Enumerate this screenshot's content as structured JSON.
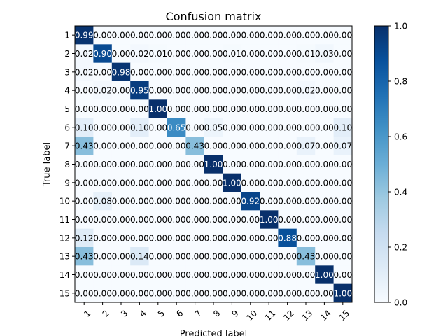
{
  "chart_data": {
    "type": "heatmap",
    "title": "Confusion matrix",
    "xlabel": "Predicted label",
    "ylabel": "True label",
    "x_tick_labels": [
      "1",
      "2",
      "3",
      "4",
      "5",
      "6",
      "7",
      "8",
      "9",
      "10",
      "11",
      "12",
      "13",
      "14",
      "15"
    ],
    "y_tick_labels": [
      "1",
      "2",
      "3",
      "4",
      "5",
      "6",
      "7",
      "8",
      "9",
      "10",
      "11",
      "12",
      "13",
      "14",
      "15"
    ],
    "x_tick_rotation_deg": 45,
    "colormap": "Blues",
    "value_range": [
      0,
      1
    ],
    "colorbar": {
      "ticks": [
        0.0,
        0.2,
        0.4,
        0.6,
        0.8,
        1.0
      ],
      "tick_labels": [
        "0.0",
        "0.2",
        "0.4",
        "0.6",
        "0.8",
        "1.0"
      ],
      "placement": "right"
    },
    "grid": false,
    "matrix": [
      [
        0.99,
        0.0,
        0.0,
        0.0,
        0.0,
        0.0,
        0.0,
        0.0,
        0.0,
        0.0,
        0.0,
        0.0,
        0.0,
        0.0,
        0.0
      ],
      [
        0.02,
        0.9,
        0.0,
        0.02,
        0.01,
        0.0,
        0.0,
        0.0,
        0.01,
        0.0,
        0.0,
        0.0,
        0.01,
        0.03,
        0.0
      ],
      [
        0.02,
        0.0,
        0.98,
        0.0,
        0.0,
        0.0,
        0.0,
        0.0,
        0.0,
        0.0,
        0.0,
        0.0,
        0.0,
        0.0,
        0.0
      ],
      [
        0.0,
        0.02,
        0.0,
        0.95,
        0.0,
        0.0,
        0.0,
        0.0,
        0.0,
        0.0,
        0.0,
        0.0,
        0.02,
        0.0,
        0.0
      ],
      [
        0.0,
        0.0,
        0.0,
        0.0,
        1.0,
        0.0,
        0.0,
        0.0,
        0.0,
        0.0,
        0.0,
        0.0,
        0.0,
        0.0,
        0.0
      ],
      [
        0.1,
        0.0,
        0.0,
        0.1,
        0.0,
        0.65,
        0.0,
        0.05,
        0.0,
        0.0,
        0.0,
        0.0,
        0.0,
        0.0,
        0.1
      ],
      [
        0.43,
        0.0,
        0.0,
        0.0,
        0.0,
        0.0,
        0.43,
        0.0,
        0.0,
        0.0,
        0.0,
        0.0,
        0.07,
        0.0,
        0.07
      ],
      [
        0.0,
        0.0,
        0.0,
        0.0,
        0.0,
        0.0,
        0.0,
        1.0,
        0.0,
        0.0,
        0.0,
        0.0,
        0.0,
        0.0,
        0.0
      ],
      [
        0.0,
        0.0,
        0.0,
        0.0,
        0.0,
        0.0,
        0.0,
        0.0,
        1.0,
        0.0,
        0.0,
        0.0,
        0.0,
        0.0,
        0.0
      ],
      [
        0.0,
        0.08,
        0.0,
        0.0,
        0.0,
        0.0,
        0.0,
        0.0,
        0.0,
        0.92,
        0.0,
        0.0,
        0.0,
        0.0,
        0.0
      ],
      [
        0.0,
        0.0,
        0.0,
        0.0,
        0.0,
        0.0,
        0.0,
        0.0,
        0.0,
        0.0,
        1.0,
        0.0,
        0.0,
        0.0,
        0.0
      ],
      [
        0.12,
        0.0,
        0.0,
        0.0,
        0.0,
        0.0,
        0.0,
        0.0,
        0.0,
        0.0,
        0.0,
        0.88,
        0.0,
        0.0,
        0.0
      ],
      [
        0.43,
        0.0,
        0.0,
        0.14,
        0.0,
        0.0,
        0.0,
        0.0,
        0.0,
        0.0,
        0.0,
        0.0,
        0.43,
        0.0,
        0.0
      ],
      [
        0.0,
        0.0,
        0.0,
        0.0,
        0.0,
        0.0,
        0.0,
        0.0,
        0.0,
        0.0,
        0.0,
        0.0,
        0.0,
        1.0,
        0.0
      ],
      [
        0.0,
        0.0,
        0.0,
        0.0,
        0.0,
        0.0,
        0.0,
        0.0,
        0.0,
        0.0,
        0.0,
        0.0,
        0.0,
        0.0,
        1.0
      ]
    ],
    "cell_labels": [
      [
        "0.99",
        "0.00",
        "0.00",
        "0.00",
        "0.00",
        "0.00",
        "0.00",
        "0.00",
        "0.00",
        "0.00",
        "0.00",
        "0.00",
        "0.00",
        "0.00",
        "0.00"
      ],
      [
        "0.02",
        "0.90",
        "0.00",
        "0.02",
        "0.01",
        "0.00",
        "0.00",
        "0.00",
        "0.01",
        "0.00",
        "0.00",
        "0.00",
        "0.01",
        "0.03",
        "0.00"
      ],
      [
        "0.02",
        "0.00",
        "0.98",
        "0.00",
        "0.00",
        "0.00",
        "0.00",
        "0.00",
        "0.00",
        "0.00",
        "0.00",
        "0.00",
        "0.00",
        "0.00",
        "0.00"
      ],
      [
        "0.00",
        "0.02",
        "0.00",
        "0.95",
        "0.00",
        "0.00",
        "0.00",
        "0.00",
        "0.00",
        "0.00",
        "0.00",
        "0.00",
        "0.02",
        "0.00",
        "0.00"
      ],
      [
        "0.00",
        "0.00",
        "0.00",
        "0.00",
        "1.00",
        "0.00",
        "0.00",
        "0.00",
        "0.00",
        "0.00",
        "0.00",
        "0.00",
        "0.00",
        "0.00",
        "0.00"
      ],
      [
        "0.10",
        "0.00",
        "0.00",
        "0.10",
        "0.00",
        "0.65",
        "0.00",
        "0.05",
        "0.00",
        "0.00",
        "0.00",
        "0.00",
        "0.00",
        "0.00",
        "0.10"
      ],
      [
        "0.43",
        "0.00",
        "0.00",
        "0.00",
        "0.00",
        "0.00",
        "0.43",
        "0.00",
        "0.00",
        "0.00",
        "0.00",
        "0.00",
        "0.07",
        "0.00",
        "0.07"
      ],
      [
        "0.00",
        "0.00",
        "0.00",
        "0.00",
        "0.00",
        "0.00",
        "0.00",
        "1.00",
        "0.00",
        "0.00",
        "0.00",
        "0.00",
        "0.00",
        "0.00",
        "0.00"
      ],
      [
        "0.00",
        "0.00",
        "0.00",
        "0.00",
        "0.00",
        "0.00",
        "0.00",
        "0.00",
        "1.00",
        "0.00",
        "0.00",
        "0.00",
        "0.00",
        "0.00",
        "0.00"
      ],
      [
        "0.00",
        "0.08",
        "0.00",
        "0.00",
        "0.00",
        "0.00",
        "0.00",
        "0.00",
        "0.00",
        "0.92",
        "0.00",
        "0.00",
        "0.00",
        "0.00",
        "0.00"
      ],
      [
        "0.00",
        "0.00",
        "0.00",
        "0.00",
        "0.00",
        "0.00",
        "0.00",
        "0.00",
        "0.00",
        "0.00",
        "1.00",
        "0.00",
        "0.00",
        "0.00",
        "0.00"
      ],
      [
        "0.12",
        "0.00",
        "0.00",
        "0.00",
        "0.00",
        "0.00",
        "0.00",
        "0.00",
        "0.00",
        "0.00",
        "0.00",
        "0.88",
        "0.00",
        "0.00",
        "0.00"
      ],
      [
        "0.43",
        "0.00",
        "0.00",
        "0.14",
        "0.00",
        "0.00",
        "0.00",
        "0.00",
        "0.00",
        "0.00",
        "0.00",
        "0.00",
        "0.43",
        "0.00",
        "0.00"
      ],
      [
        "0.00",
        "0.00",
        "0.00",
        "0.00",
        "0.00",
        "0.00",
        "0.00",
        "0.00",
        "0.00",
        "0.00",
        "0.00",
        "0.00",
        "0.00",
        "1.00",
        "0.00"
      ],
      [
        "0.00",
        "0.00",
        "0.00",
        "0.00",
        "0.00",
        "0.00",
        "0.00",
        "0.00",
        "0.00",
        "0.00",
        "0.00",
        "0.00",
        "0.00",
        "0.00",
        "1.00"
      ]
    ]
  }
}
